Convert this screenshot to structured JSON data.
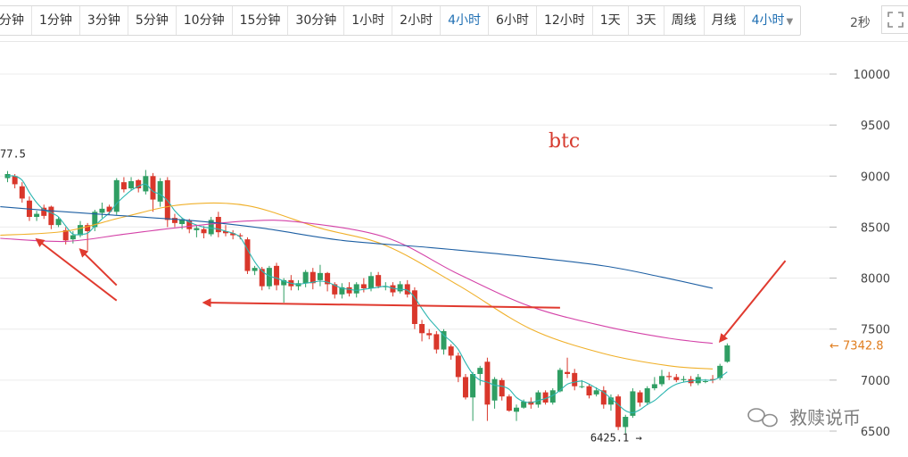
{
  "toolbar": {
    "tabs": [
      {
        "label": "分钟",
        "active": false
      },
      {
        "label": "1分钟",
        "active": false
      },
      {
        "label": "3分钟",
        "active": false
      },
      {
        "label": "5分钟",
        "active": false
      },
      {
        "label": "10分钟",
        "active": false
      },
      {
        "label": "15分钟",
        "active": false
      },
      {
        "label": "30分钟",
        "active": false
      },
      {
        "label": "1小时",
        "active": false
      },
      {
        "label": "2小时",
        "active": false
      },
      {
        "label": "4小时",
        "active": true
      },
      {
        "label": "6小时",
        "active": false
      },
      {
        "label": "12小时",
        "active": false
      },
      {
        "label": "1天",
        "active": false
      },
      {
        "label": "3天",
        "active": false
      },
      {
        "label": "周线",
        "active": false
      },
      {
        "label": "月线",
        "active": false
      }
    ],
    "period_dropdown": "4小时",
    "refresh_interval": "2秒",
    "fullscreen_icon": "fullscreen-icon"
  },
  "colors": {
    "up": "#2f9e63",
    "down": "#d9372b",
    "accent": "#1f6fb3",
    "current_price": "#e07d1e",
    "arrow": "#e03a2f"
  },
  "chart_data": {
    "type": "candlestick",
    "title": "btc",
    "y_ticks": [
      10000,
      9500,
      9000,
      8500,
      8000,
      7500,
      7000,
      6500
    ],
    "ylim": [
      6380,
      10130
    ],
    "current_price": "7342.8",
    "high_annotation": "77.5",
    "low_annotation": "6425.1",
    "watermark": "救赎说币",
    "candles": [
      [
        8980,
        9020,
        8940,
        9050
      ],
      [
        9000,
        8920,
        8880,
        9020
      ],
      [
        8900,
        8780,
        8740,
        8940
      ],
      [
        8760,
        8600,
        8560,
        8800
      ],
      [
        8600,
        8630,
        8560,
        8660
      ],
      [
        8690,
        8610,
        8580,
        8720
      ],
      [
        8700,
        8520,
        8480,
        8710
      ],
      [
        8520,
        8580,
        8500,
        8600
      ],
      [
        8470,
        8370,
        8330,
        8500
      ],
      [
        8380,
        8420,
        8340,
        8460
      ],
      [
        8420,
        8520,
        8400,
        8560
      ],
      [
        8520,
        8460,
        8270,
        8540
      ],
      [
        8500,
        8650,
        8460,
        8670
      ],
      [
        8640,
        8680,
        8590,
        8740
      ],
      [
        8700,
        8650,
        8620,
        8720
      ],
      [
        8650,
        8960,
        8620,
        8980
      ],
      [
        8940,
        8870,
        8840,
        8990
      ],
      [
        8880,
        8950,
        8860,
        8990
      ],
      [
        8960,
        8880,
        8840,
        8970
      ],
      [
        8850,
        9000,
        8820,
        9060
      ],
      [
        9000,
        8770,
        8650,
        9030
      ],
      [
        8750,
        8950,
        8700,
        8980
      ],
      [
        8960,
        8570,
        8500,
        8990
      ],
      [
        8590,
        8540,
        8500,
        8630
      ],
      [
        8530,
        8570,
        8480,
        8590
      ],
      [
        8560,
        8480,
        8440,
        8580
      ],
      [
        8470,
        8490,
        8400,
        8520
      ],
      [
        8480,
        8440,
        8390,
        8510
      ],
      [
        8430,
        8570,
        8410,
        8600
      ],
      [
        8600,
        8450,
        8400,
        8650
      ],
      [
        8460,
        8440,
        8410,
        8520
      ],
      [
        8440,
        8420,
        8380,
        8470
      ],
      [
        8420,
        8410,
        8380,
        8440
      ],
      [
        8380,
        8070,
        8040,
        8400
      ],
      [
        8070,
        8100,
        8030,
        8120
      ],
      [
        8090,
        7920,
        7880,
        8110
      ],
      [
        7920,
        8100,
        7890,
        8120
      ],
      [
        8120,
        7930,
        7880,
        8150
      ],
      [
        7930,
        7980,
        7760,
        8000
      ],
      [
        7980,
        7920,
        7880,
        8030
      ],
      [
        7920,
        7950,
        7880,
        7980
      ],
      [
        7950,
        8060,
        7910,
        8080
      ],
      [
        8060,
        7950,
        7890,
        8100
      ],
      [
        7980,
        8050,
        7920,
        8130
      ],
      [
        8050,
        7940,
        7870,
        8060
      ],
      [
        7940,
        7840,
        7800,
        7960
      ],
      [
        7840,
        7910,
        7800,
        7950
      ],
      [
        7910,
        7850,
        7820,
        7960
      ],
      [
        7850,
        7940,
        7810,
        7960
      ],
      [
        7940,
        7900,
        7860,
        8000
      ],
      [
        7900,
        8020,
        7870,
        8060
      ],
      [
        8030,
        7920,
        7900,
        8060
      ],
      [
        7920,
        7920,
        7880,
        7960
      ],
      [
        7930,
        7860,
        7820,
        7960
      ],
      [
        7870,
        7940,
        7850,
        7970
      ],
      [
        7940,
        7840,
        7810,
        7980
      ],
      [
        7880,
        7550,
        7500,
        7910
      ],
      [
        7550,
        7460,
        7380,
        7590
      ],
      [
        7460,
        7440,
        7400,
        7500
      ],
      [
        7450,
        7300,
        7260,
        7480
      ],
      [
        7300,
        7480,
        7250,
        7500
      ],
      [
        7330,
        7240,
        7200,
        7350
      ],
      [
        7240,
        7030,
        6980,
        7270
      ],
      [
        7030,
        6830,
        6810,
        7060
      ],
      [
        6830,
        7060,
        6600,
        7080
      ],
      [
        7060,
        7120,
        6950,
        7140
      ],
      [
        7180,
        6760,
        6600,
        7220
      ],
      [
        6800,
        7010,
        6720,
        7030
      ],
      [
        7000,
        6840,
        6800,
        7020
      ],
      [
        6840,
        6700,
        6690,
        6860
      ],
      [
        6690,
        6730,
        6600,
        6760
      ],
      [
        6730,
        6790,
        6720,
        6810
      ],
      [
        6790,
        6760,
        6720,
        6830
      ],
      [
        6760,
        6880,
        6730,
        6900
      ],
      [
        6880,
        6780,
        6760,
        6900
      ],
      [
        6780,
        6900,
        6760,
        6920
      ],
      [
        6890,
        7100,
        6880,
        7120
      ],
      [
        7080,
        7060,
        7020,
        7220
      ],
      [
        7070,
        6940,
        6900,
        7110
      ],
      [
        6940,
        6940,
        6920,
        7000
      ],
      [
        6940,
        6850,
        6820,
        6960
      ],
      [
        6860,
        6900,
        6840,
        6930
      ],
      [
        6900,
        6760,
        6720,
        6940
      ],
      [
        6760,
        6830,
        6700,
        6860
      ],
      [
        6840,
        6540,
        6510,
        6860
      ],
      [
        6540,
        6640,
        6480,
        6660
      ],
      [
        6650,
        6890,
        6630,
        6920
      ],
      [
        6880,
        6780,
        6740,
        6900
      ],
      [
        6780,
        6920,
        6760,
        6940
      ],
      [
        6920,
        6960,
        6900,
        7030
      ],
      [
        6960,
        7040,
        6940,
        7100
      ],
      [
        7040,
        7030,
        7000,
        7080
      ],
      [
        7030,
        7000,
        6980,
        7060
      ],
      [
        7000,
        7010,
        6980,
        7040
      ],
      [
        7010,
        6970,
        6940,
        7040
      ],
      [
        6970,
        7030,
        6950,
        7060
      ],
      [
        6990,
        6990,
        6970,
        7010
      ],
      [
        7010,
        7000,
        6970,
        7050
      ],
      [
        7020,
        7140,
        7000,
        7160
      ],
      [
        7180,
        7340,
        7170,
        7360
      ]
    ],
    "ma_curves": {
      "ma_fast": {
        "color": "#2bb5b0",
        "values": [
          9000,
          9000,
          8960,
          8840,
          8740,
          8670,
          8640,
          8600,
          8510,
          8430,
          8430,
          8440,
          8510,
          8580,
          8640,
          8730,
          8800,
          8860,
          8900,
          8920,
          8850,
          8820,
          8760,
          8660,
          8590,
          8550,
          8520,
          8500,
          8490,
          8480,
          8460,
          8440,
          8400,
          8280,
          8160,
          8070,
          8020,
          8000,
          7970,
          7950,
          7940,
          7950,
          7960,
          7970,
          7960,
          7930,
          7900,
          7890,
          7880,
          7890,
          7900,
          7910,
          7920,
          7900,
          7890,
          7880,
          7810,
          7700,
          7600,
          7520,
          7440,
          7380,
          7300,
          7170,
          7060,
          7000,
          6980,
          6950,
          6940,
          6910,
          6830,
          6790,
          6780,
          6800,
          6820,
          6850,
          6900,
          6960,
          6980,
          6990,
          6960,
          6920,
          6880,
          6820,
          6760,
          6700,
          6680,
          6710,
          6760,
          6800,
          6860,
          6920,
          6960,
          6980,
          6990,
          7000,
          7000,
          7000,
          7030,
          7080
        ]
      },
      "ma_orange": {
        "color": "#f0b02a",
        "data": [
          [
            -1,
            8420
          ],
          [
            8,
            8460
          ],
          [
            16,
            8600
          ],
          [
            24,
            8720
          ],
          [
            33,
            8710
          ],
          [
            43,
            8490
          ],
          [
            52,
            8320
          ],
          [
            62,
            7930
          ],
          [
            72,
            7500
          ],
          [
            82,
            7260
          ],
          [
            91,
            7140
          ],
          [
            97,
            7110
          ]
        ]
      },
      "ma_pink": {
        "color": "#d443a8",
        "data": [
          [
            -1,
            8390
          ],
          [
            8,
            8360
          ],
          [
            16,
            8430
          ],
          [
            24,
            8500
          ],
          [
            33,
            8560
          ],
          [
            40,
            8550
          ],
          [
            52,
            8400
          ],
          [
            62,
            8040
          ],
          [
            72,
            7720
          ],
          [
            82,
            7530
          ],
          [
            91,
            7410
          ],
          [
            97,
            7360
          ]
        ]
      },
      "ma_blue": {
        "color": "#1d5fa3",
        "data": [
          [
            -1,
            8700
          ],
          [
            6,
            8660
          ],
          [
            16,
            8610
          ],
          [
            26,
            8560
          ],
          [
            35,
            8490
          ],
          [
            46,
            8370
          ],
          [
            58,
            8300
          ],
          [
            70,
            8220
          ],
          [
            82,
            8120
          ],
          [
            90,
            8010
          ],
          [
            97,
            7900
          ]
        ]
      }
    },
    "annotation_lines": [
      {
        "from": [
          4,
          8380
        ],
        "to": [
          15,
          7780
        ]
      },
      {
        "from": [
          10,
          8280
        ],
        "to": [
          15,
          7930
        ]
      },
      {
        "from": [
          27,
          7760
        ],
        "to": [
          76,
          7710
        ]
      },
      {
        "from": [
          98,
          7380
        ],
        "to": [
          107,
          8170
        ]
      }
    ]
  },
  "labels": {
    "btc": "btc",
    "watermark": "救赎说币"
  }
}
